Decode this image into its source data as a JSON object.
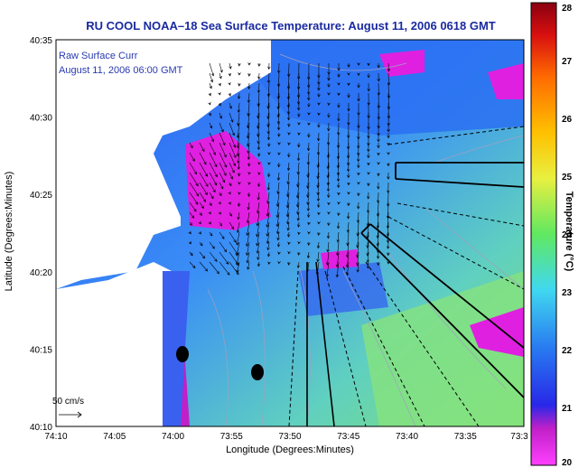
{
  "title": "RU COOL  NOAA–18  Sea Surface Temperature:  August 11, 2006 0618 GMT",
  "overlay": {
    "line1": "Raw Surface Curr",
    "line2": "August 11, 2006 06:00 GMT"
  },
  "axes": {
    "xlabel": "Longitude (Degrees:Minutes)",
    "ylabel": "Latitude (Degrees:Minutes)",
    "xticks": [
      "74:10",
      "74:05",
      "74:00",
      "73:55",
      "73:50",
      "73:45",
      "73:40",
      "73:35",
      "73:3"
    ],
    "yticks": [
      "40:35",
      "40:30",
      "40:25",
      "40:20",
      "40:15",
      "40:10"
    ]
  },
  "scale": {
    "label": "50 cm/s"
  },
  "colorbar": {
    "label": "Temperature (°C)",
    "ticks": [
      "28",
      "27",
      "26",
      "25",
      "24",
      "23",
      "22",
      "21",
      "20"
    ],
    "colors": [
      "#8a0010",
      "#d81010",
      "#ff6a00",
      "#ffc000",
      "#e8f040",
      "#60e860",
      "#40d8f0",
      "#2878f0",
      "#2828e8",
      "#c020c8",
      "#ff40ff"
    ]
  },
  "colors": {
    "ocean_base": "#3a7ef5",
    "cool_water": "#1f3ff0",
    "warm_water": "#80e0a0",
    "land": "#ffffff",
    "cloud_mask": "#e020e0",
    "title": "#1a2aa0"
  }
}
